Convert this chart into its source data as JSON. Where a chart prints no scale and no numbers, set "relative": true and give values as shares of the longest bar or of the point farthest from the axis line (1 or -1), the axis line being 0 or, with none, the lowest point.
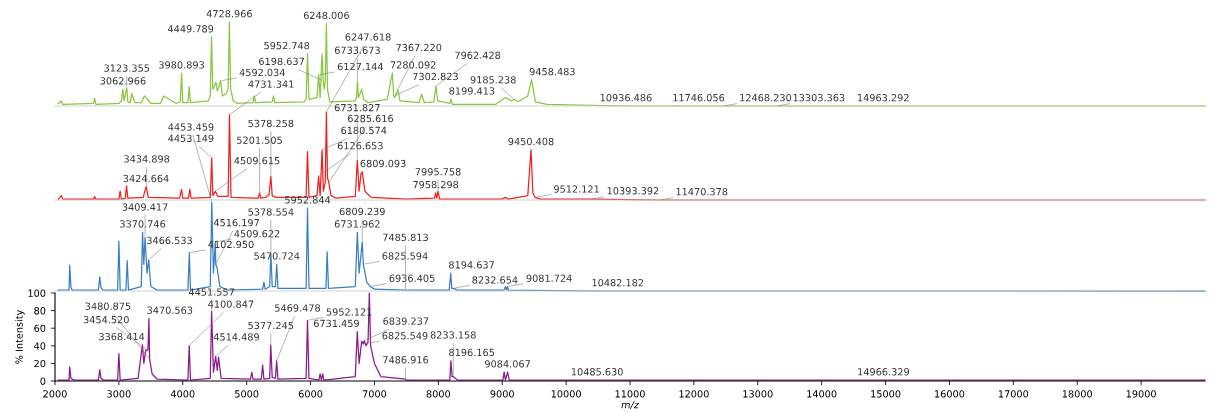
{
  "chart_data": [
    {
      "type": "line",
      "relative": true,
      "color": "#8cc63f",
      "xlim": [
        2000,
        20000
      ],
      "tick_labels": false,
      "x": [
        2050,
        2100,
        2120,
        2140,
        2600,
        2620,
        2640,
        3000,
        3040,
        3062.966,
        3080,
        3123.355,
        3140,
        3180,
        3200,
        3250,
        3350,
        3400,
        3500,
        3650,
        3700,
        3900,
        3960,
        3980.893,
        4000,
        4080,
        4100,
        4120,
        4400,
        4430,
        4449.789,
        4470,
        4520,
        4540,
        4560,
        4592.034,
        4620,
        4680,
        4710,
        4728.966,
        4750,
        4790,
        4850,
        5100,
        5120,
        5140,
        5400,
        5420,
        5440,
        5900,
        5930,
        5952.748,
        5975,
        6100,
        6127.144,
        6150,
        6180,
        6198.637,
        6215,
        6230,
        6248.006,
        6265,
        6300,
        6700,
        6720,
        6733.673,
        6750,
        6800,
        6830,
        6900,
        7200,
        7280.092,
        7302.823,
        7320,
        7367.22,
        7400,
        7700,
        7740,
        7780,
        7930,
        7962.428,
        7990,
        8180,
        8199.413,
        8220,
        8900,
        9050,
        9150,
        9185.238,
        9250,
        9400,
        9458.483,
        9520,
        9700,
        10936.486,
        11746.056,
        12468.23,
        13303.363,
        14963.292,
        20000
      ],
      "values": [
        0.03,
        0.06,
        0.02,
        0.02,
        0.03,
        0.09,
        0.02,
        0.03,
        0.06,
        0.2,
        0.06,
        0.22,
        0.05,
        0.04,
        0.15,
        0.04,
        0.04,
        0.12,
        0.03,
        0.03,
        0.12,
        0.03,
        0.05,
        0.39,
        0.04,
        0.04,
        0.23,
        0.04,
        0.06,
        0.12,
        0.82,
        0.2,
        0.28,
        0.18,
        0.22,
        0.3,
        0.12,
        0.15,
        0.2,
        1.0,
        0.2,
        0.06,
        0.03,
        0.04,
        0.12,
        0.04,
        0.05,
        0.12,
        0.04,
        0.05,
        0.08,
        0.62,
        0.08,
        0.1,
        0.37,
        0.1,
        0.62,
        0.3,
        0.2,
        0.3,
        0.98,
        0.2,
        0.05,
        0.06,
        0.1,
        0.3,
        0.1,
        0.2,
        0.08,
        0.04,
        0.08,
        0.39,
        0.12,
        0.1,
        0.2,
        0.06,
        0.04,
        0.14,
        0.04,
        0.05,
        0.24,
        0.06,
        0.03,
        0.08,
        0.02,
        0.02,
        0.1,
        0.06,
        0.08,
        0.05,
        0.12,
        0.31,
        0.05,
        0.02,
        0.0,
        0.0,
        0.0,
        0.0,
        0.0,
        0.0
      ],
      "annotations": [
        {
          "text": "3062.966",
          "x": 3062.966,
          "y": 0.2
        },
        {
          "text": "3123.355",
          "x": 3123.355,
          "y": 0.22
        },
        {
          "text": "3980.893",
          "x": 3980.893,
          "y": 0.39
        },
        {
          "text": "4449.789",
          "x": 4449.789,
          "y": 0.82
        },
        {
          "text": "4592.034",
          "x": 4592.034,
          "y": 0.3
        },
        {
          "text": "4728.966",
          "x": 4728.966,
          "y": 1.0
        },
        {
          "text": "5952.748",
          "x": 5952.748,
          "y": 0.62
        },
        {
          "text": "6127.144",
          "x": 6127.144,
          "y": 0.37
        },
        {
          "text": "6198.637",
          "x": 6198.637,
          "y": 0.3
        },
        {
          "text": "6248.006",
          "x": 6248.006,
          "y": 0.98
        },
        {
          "text": "6733.673",
          "x": 6733.673,
          "y": 0.3
        },
        {
          "text": "7280.092",
          "x": 7280.092,
          "y": 0.39
        },
        {
          "text": "7302.823",
          "x": 7302.823,
          "y": 0.12
        },
        {
          "text": "7367.220",
          "x": 7367.22,
          "y": 0.2
        },
        {
          "text": "7962.428",
          "x": 7962.428,
          "y": 0.24
        },
        {
          "text": "8199.413",
          "x": 8199.413,
          "y": 0.08
        },
        {
          "text": "9185.238",
          "x": 9185.238,
          "y": 0.08
        },
        {
          "text": "9458.483",
          "x": 9458.483,
          "y": 0.31
        },
        {
          "text": "10936.486",
          "x": 10936.486,
          "y": 0.0
        },
        {
          "text": "11746.056",
          "x": 11746.056,
          "y": 0.0
        },
        {
          "text": "12468.230",
          "x": 12468.23,
          "y": 0.0
        },
        {
          "text": "13303.363",
          "x": 13303.363,
          "y": 0.0
        },
        {
          "text": "14963.292",
          "x": 14963.292,
          "y": 0.0
        }
      ]
    },
    {
      "type": "line",
      "relative": true,
      "color": "#ee2222",
      "xlim": [
        2000,
        20000
      ],
      "tick_labels": false,
      "x": [
        2050,
        2100,
        2120,
        2600,
        2620,
        2640,
        3000,
        3020,
        3040,
        3100,
        3120,
        3140,
        3380,
        3424.664,
        3434.898,
        3460,
        3950,
        3980,
        4000,
        4090,
        4110,
        4130,
        4430,
        4453.149,
        4470,
        4509.615,
        4550,
        4710,
        4731.341,
        4755,
        5180,
        5201.505,
        5220,
        5300,
        5350,
        5378.258,
        5400,
        5450,
        5930,
        5952,
        5975,
        6100,
        6126.653,
        6150,
        6180.574,
        6200,
        6230,
        6247.618,
        6265,
        6285.616,
        6320,
        6400,
        6700,
        6731.827,
        6760,
        6790,
        6809.093,
        6850,
        6950,
        7500,
        7940,
        7958.298,
        7975,
        7995.758,
        8020,
        9000,
        9050,
        9100,
        9400,
        9450.408,
        9480,
        9512.121,
        9600,
        10393.392,
        11470.378,
        20000
      ],
      "values": [
        0.01,
        0.05,
        0.01,
        0.01,
        0.04,
        0.01,
        0.01,
        0.1,
        0.01,
        0.02,
        0.16,
        0.02,
        0.03,
        0.15,
        0.12,
        0.03,
        0.02,
        0.12,
        0.02,
        0.02,
        0.12,
        0.02,
        0.03,
        0.48,
        0.05,
        0.1,
        0.04,
        0.04,
        0.97,
        0.03,
        0.02,
        0.08,
        0.02,
        0.03,
        0.06,
        0.27,
        0.05,
        0.03,
        0.03,
        0.55,
        0.03,
        0.05,
        0.27,
        0.05,
        0.57,
        0.1,
        0.2,
        1.0,
        0.25,
        0.2,
        0.05,
        0.02,
        0.04,
        0.45,
        0.1,
        0.3,
        0.32,
        0.1,
        0.03,
        0.01,
        0.02,
        0.08,
        0.02,
        0.1,
        0.01,
        0.01,
        0.03,
        0.01,
        0.05,
        0.57,
        0.08,
        0.03,
        0.01,
        0.01,
        0.0,
        0.0
      ],
      "annotations": [
        {
          "text": "3424.664",
          "x": 3424.664,
          "y": 0.15
        },
        {
          "text": "3434.898",
          "x": 3434.898,
          "y": 0.12
        },
        {
          "text": "4453.149",
          "x": 4453.149,
          "y": 0.48
        },
        {
          "text": "4509.615",
          "x": 4509.615,
          "y": 0.1
        },
        {
          "text": "4731.341",
          "x": 4731.341,
          "y": 0.97
        },
        {
          "text": "5201.505",
          "x": 5201.505,
          "y": 0.08
        },
        {
          "text": "5378.258",
          "x": 5378.258,
          "y": 0.27
        },
        {
          "text": "6126.653",
          "x": 6126.653,
          "y": 0.27
        },
        {
          "text": "6180.574",
          "x": 6180.574,
          "y": 0.57
        },
        {
          "text": "6247.618",
          "x": 6247.618,
          "y": 1.0
        },
        {
          "text": "6285.616",
          "x": 6285.616,
          "y": 0.2
        },
        {
          "text": "6731.827",
          "x": 6731.827,
          "y": 0.45
        },
        {
          "text": "6809.093",
          "x": 6809.093,
          "y": 0.32
        },
        {
          "text": "7958.298",
          "x": 7958.298,
          "y": 0.08
        },
        {
          "text": "7995.758",
          "x": 7995.758,
          "y": 0.1
        },
        {
          "text": "9450.408",
          "x": 9450.408,
          "y": 0.57
        },
        {
          "text": "9512.121",
          "x": 9512.121,
          "y": 0.03
        },
        {
          "text": "10393.392",
          "x": 10393.392,
          "y": 0.01
        },
        {
          "text": "11470.378",
          "x": 11470.378,
          "y": 0.0
        }
      ]
    },
    {
      "type": "line",
      "relative": true,
      "color": "#3a7fc0",
      "xlim": [
        2000,
        20000
      ],
      "tick_labels": false,
      "x": [
        2050,
        2220,
        2230,
        2250,
        2270,
        2680,
        2700,
        2720,
        2750,
        2980,
        3000,
        3020,
        3110,
        3130,
        3150,
        3350,
        3370.746,
        3390,
        3409.417,
        3440,
        3466.533,
        3500,
        3600,
        4080,
        4102.95,
        4120,
        4430,
        4453.459,
        4480,
        4509.622,
        4516.197,
        4540,
        4580,
        4700,
        5250,
        5270,
        5290,
        5360,
        5378.554,
        5400,
        5450,
        5470.724,
        5490,
        5930,
        5952.844,
        5975,
        6240,
        6260,
        6280,
        6700,
        6731.962,
        6760,
        6809.239,
        6825.594,
        6880,
        6936.405,
        7000,
        7485.813,
        8170,
        8194.637,
        8210,
        8232.654,
        8300,
        9030,
        9050,
        9070,
        9081.724,
        9100,
        10482.182,
        20000
      ],
      "values": [
        0.01,
        0.01,
        0.29,
        0.04,
        0.01,
        0.01,
        0.16,
        0.04,
        0.01,
        0.01,
        0.56,
        0.01,
        0.01,
        0.34,
        0.01,
        0.05,
        0.66,
        0.3,
        0.6,
        0.2,
        0.35,
        0.05,
        0.01,
        0.01,
        0.43,
        0.01,
        0.05,
        1.0,
        0.2,
        0.55,
        0.3,
        0.25,
        0.05,
        0.01,
        0.02,
        0.1,
        0.02,
        0.05,
        0.42,
        0.05,
        0.05,
        0.3,
        0.03,
        0.03,
        0.93,
        0.03,
        0.03,
        0.44,
        0.03,
        0.05,
        0.66,
        0.2,
        0.55,
        0.3,
        0.1,
        0.05,
        0.02,
        0.01,
        0.01,
        0.2,
        0.03,
        0.03,
        0.01,
        0.01,
        0.05,
        0.01,
        0.05,
        0.01,
        0.0,
        0.0
      ],
      "annotations": [
        {
          "text": "3370.746",
          "x": 3370.746,
          "y": 0.66
        },
        {
          "text": "3409.417",
          "x": 3409.417,
          "y": 0.6
        },
        {
          "text": "3466.533",
          "x": 3466.533,
          "y": 0.35
        },
        {
          "text": "4102.950",
          "x": 4102.95,
          "y": 0.43
        },
        {
          "text": "4453.459",
          "x": 4453.459,
          "y": 1.0
        },
        {
          "text": "4509.622",
          "x": 4509.622,
          "y": 0.55
        },
        {
          "text": "4516.197",
          "x": 4516.197,
          "y": 0.3
        },
        {
          "text": "5378.554",
          "x": 5378.554,
          "y": 0.42
        },
        {
          "text": "5470.724",
          "x": 5470.724,
          "y": 0.3
        },
        {
          "text": "5952.844",
          "x": 5952.844,
          "y": 0.93
        },
        {
          "text": "6731.962",
          "x": 6731.962,
          "y": 0.66
        },
        {
          "text": "6809.239",
          "x": 6809.239,
          "y": 0.55
        },
        {
          "text": "6825.594",
          "x": 6825.594,
          "y": 0.3
        },
        {
          "text": "6936.405",
          "x": 6936.405,
          "y": 0.05
        },
        {
          "text": "7485.813",
          "x": 7485.813,
          "y": 0.01
        },
        {
          "text": "8194.637",
          "x": 8194.637,
          "y": 0.2
        },
        {
          "text": "8232.654",
          "x": 8232.654,
          "y": 0.03
        },
        {
          "text": "9081.724",
          "x": 9081.724,
          "y": 0.05
        },
        {
          "text": "10482.182",
          "x": 10482.182,
          "y": 0.0
        }
      ]
    },
    {
      "type": "line",
      "color": "#8b1a8b",
      "xlim": [
        2000,
        20000
      ],
      "ylim": [
        0,
        100
      ],
      "xlabel": "m/z",
      "ylabel": "% Intensity",
      "xticks": [
        2000,
        3000,
        4000,
        5000,
        6000,
        7000,
        8000,
        9000,
        10000,
        11000,
        12000,
        13000,
        14000,
        15000,
        16000,
        17000,
        18000,
        19000
      ],
      "yticks": [
        0,
        20,
        40,
        60,
        80,
        100
      ],
      "x": [
        2050,
        2220,
        2230,
        2250,
        2300,
        2680,
        2700,
        2720,
        2760,
        2980,
        3000,
        3020,
        3300,
        3368.414,
        3390,
        3420,
        3454.52,
        3470.563,
        3480.875,
        3520,
        3600,
        4080,
        4100.847,
        4120,
        4430,
        4451.557,
        4480,
        4514.489,
        4540,
        4560,
        4600,
        5060,
        5080,
        5100,
        5230,
        5250,
        5270,
        5360,
        5377.245,
        5400,
        5450,
        5469.478,
        5490,
        5930,
        5952.121,
        5975,
        6130,
        6150,
        6170,
        6190,
        6210,
        6700,
        6731.459,
        6760,
        6800,
        6825.549,
        6839.237,
        6870,
        6900,
        6920,
        6940,
        7000,
        7100,
        7486.916,
        7500,
        8180,
        8196.165,
        8215,
        8233.158,
        8300,
        9010,
        9030,
        9050,
        9084.067,
        9110,
        10485.63,
        14966.329,
        20000
      ],
      "values": [
        1,
        1,
        16,
        3,
        1,
        1,
        13,
        3,
        1,
        1,
        31,
        1,
        3,
        41,
        20,
        35,
        35,
        71,
        25,
        8,
        2,
        1,
        40,
        1,
        3,
        79,
        10,
        28,
        12,
        27,
        3,
        2,
        10,
        2,
        2,
        18,
        2,
        3,
        41,
        4,
        3,
        23,
        2,
        3,
        69,
        3,
        1,
        8,
        1,
        8,
        1,
        5,
        56,
        20,
        45,
        42,
        46,
        40,
        45,
        100,
        40,
        20,
        5,
        2,
        1,
        1,
        23,
        5,
        5,
        1,
        1,
        10,
        1,
        10,
        1,
        1,
        1,
        1
      ],
      "annotations": [
        {
          "text": "3368.414",
          "x": 3368.414,
          "y": 41
        },
        {
          "text": "3454.520",
          "x": 3454.52,
          "y": 35
        },
        {
          "text": "3470.563",
          "x": 3470.563,
          "y": 71
        },
        {
          "text": "3480.875",
          "x": 3480.875,
          "y": 25
        },
        {
          "text": "4100.847",
          "x": 4100.847,
          "y": 40
        },
        {
          "text": "4451.557",
          "x": 4451.557,
          "y": 79
        },
        {
          "text": "4514.489",
          "x": 4514.489,
          "y": 28
        },
        {
          "text": "5377.245",
          "x": 5377.245,
          "y": 41
        },
        {
          "text": "5469.478",
          "x": 5469.478,
          "y": 23
        },
        {
          "text": "5952.121",
          "x": 5952.121,
          "y": 69
        },
        {
          "text": "6731.459",
          "x": 6731.459,
          "y": 56
        },
        {
          "text": "6825.549",
          "x": 6825.549,
          "y": 42
        },
        {
          "text": "6839.237",
          "x": 6839.237,
          "y": 46
        },
        {
          "text": "7486.916",
          "x": 7486.916,
          "y": 2
        },
        {
          "text": "8196.165",
          "x": 8196.165,
          "y": 23
        },
        {
          "text": "8233.158",
          "x": 8233.158,
          "y": 5
        },
        {
          "text": "9084.067",
          "x": 9084.067,
          "y": 10
        },
        {
          "text": "10485.630",
          "x": 10485.63,
          "y": 1
        },
        {
          "text": "14966.329",
          "x": 14966.329,
          "y": 1
        }
      ]
    }
  ]
}
